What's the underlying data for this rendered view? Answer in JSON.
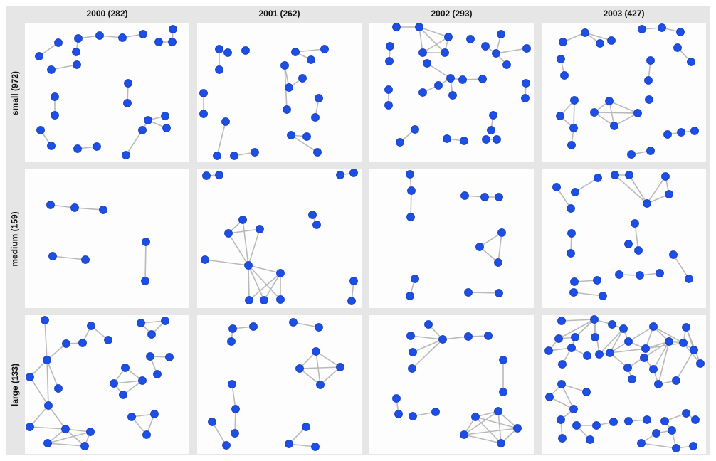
{
  "columns": [
    {
      "label": "2000 (282)"
    },
    {
      "label": "2001 (262)"
    },
    {
      "label": "2002 (293)"
    },
    {
      "label": "2003 (427)"
    }
  ],
  "rows": [
    {
      "label": "small (972)"
    },
    {
      "label": "medium (159)"
    },
    {
      "label": "large (133)"
    }
  ],
  "colors": {
    "node": "#1c4fe6",
    "edge": "#b9b9b9",
    "background": "#e6e6e6",
    "panel": "#fdfdfd"
  }
}
